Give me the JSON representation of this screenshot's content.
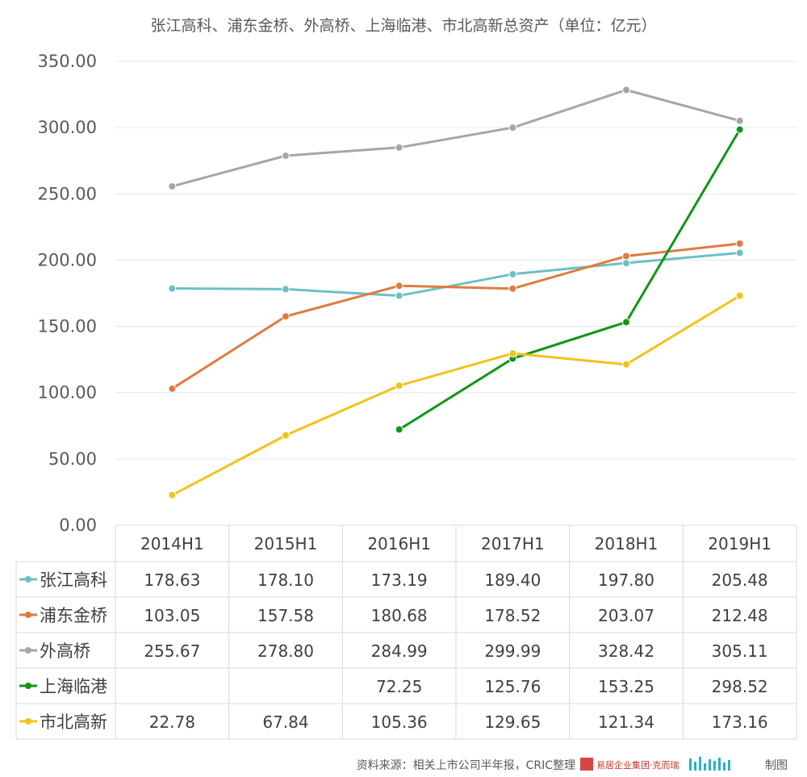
{
  "chart_data": {
    "type": "line",
    "title": "张江高科、浦东金桥、外高桥、上海临港、市北高新总资产（单位：亿元）",
    "categories": [
      "2014H1",
      "2015H1",
      "2016H1",
      "2017H1",
      "2018H1",
      "2019H1"
    ],
    "ylim": [
      0,
      350
    ],
    "yticks": [
      "0.00",
      "50.00",
      "100.00",
      "150.00",
      "200.00",
      "250.00",
      "300.00",
      "350.00"
    ],
    "grid": true,
    "legend": "data-table-left",
    "series": [
      {
        "name": "张江高科",
        "color": "#6cc0c6",
        "values": [
          178.63,
          178.1,
          173.19,
          189.4,
          197.8,
          205.48
        ],
        "labels": [
          "178.63",
          "178.10",
          "173.19",
          "189.40",
          "197.80",
          "205.48"
        ]
      },
      {
        "name": "浦东金桥",
        "color": "#e07b3e",
        "values": [
          103.05,
          157.58,
          180.68,
          178.52,
          203.07,
          212.48
        ],
        "labels": [
          "103.05",
          "157.58",
          "180.68",
          "178.52",
          "203.07",
          "212.48"
        ]
      },
      {
        "name": "外高桥",
        "color": "#a6a6a6",
        "values": [
          255.67,
          278.8,
          284.99,
          299.99,
          328.42,
          305.11
        ],
        "labels": [
          "255.67",
          "278.80",
          "284.99",
          "299.99",
          "328.42",
          "305.11"
        ]
      },
      {
        "name": "上海临港",
        "color": "#119616",
        "values": [
          null,
          null,
          72.25,
          125.76,
          153.25,
          298.52
        ],
        "labels": [
          "",
          "",
          "72.25",
          "125.76",
          "153.25",
          "298.52"
        ]
      },
      {
        "name": "市北高新",
        "color": "#f4c21b",
        "values": [
          22.78,
          67.84,
          105.36,
          129.65,
          121.34,
          173.16
        ],
        "labels": [
          "22.78",
          "67.84",
          "105.36",
          "129.65",
          "121.34",
          "173.16"
        ]
      }
    ]
  },
  "source": "资料来源：相关上市公司半年报，CRIC整理",
  "credit_brand": "易居企业集团·克而瑞",
  "credit_tail": "制图"
}
